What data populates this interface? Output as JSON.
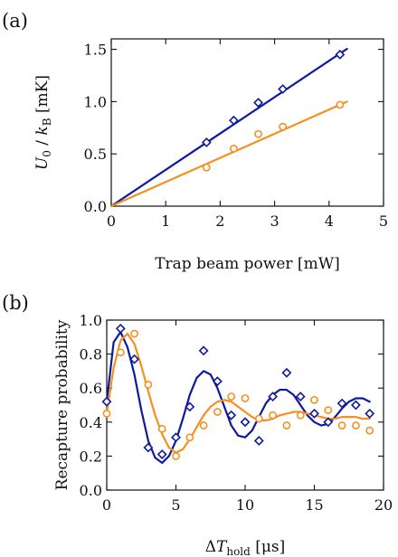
{
  "colors": {
    "series_a": "#0d1a9c",
    "series_b": "#f5901e",
    "axis": "#111111"
  },
  "chart_data": [
    {
      "type": "scatter",
      "panel_label": "(a)",
      "xlabel": "Trap beam power [mW]",
      "ylabel": "U_0 / k_B [mK]",
      "ylabel_parts": {
        "sym": "U",
        "sub": "0",
        "mid": " / ",
        "sym2": "k",
        "sub2": "B",
        "tail": " [mK]"
      },
      "xlim": [
        0,
        5
      ],
      "ylim": [
        0,
        1.6
      ],
      "xticks": [
        0,
        1,
        2,
        3,
        4,
        5
      ],
      "xtick_labels": [
        "0",
        "1",
        "2",
        "3",
        "4",
        "5"
      ],
      "yticks": [
        0,
        0.5,
        1.0,
        1.5
      ],
      "ytick_labels": [
        "0.0",
        "0.5",
        "1.0",
        "1.5"
      ],
      "grid": false,
      "series": [
        {
          "marker": "diamond",
          "x": [
            1.75,
            2.25,
            2.7,
            3.15,
            4.2
          ],
          "y": [
            0.61,
            0.82,
            0.99,
            1.12,
            1.45
          ],
          "fit": {
            "x": [
              0,
              4.33
            ],
            "y": [
              0,
              1.505
            ]
          }
        },
        {
          "marker": "circle",
          "x": [
            1.75,
            2.25,
            2.7,
            3.15,
            4.2
          ],
          "y": [
            0.37,
            0.55,
            0.69,
            0.76,
            0.97
          ],
          "fit": {
            "x": [
              0,
              4.33
            ],
            "y": [
              0,
              1.0
            ]
          }
        }
      ]
    },
    {
      "type": "scatter",
      "panel_label": "(b)",
      "xlabel": "ΔT_hold [μs]",
      "xlabel_parts": {
        "pre": "Δ",
        "sym": "T",
        "sub": "hold",
        "tail": " [μs]"
      },
      "ylabel": "Recapture probability",
      "xlim": [
        0,
        20
      ],
      "ylim": [
        0,
        1.0
      ],
      "xticks": [
        0,
        5,
        10,
        15,
        20
      ],
      "xtick_labels": [
        "0",
        "5",
        "10",
        "15",
        "20"
      ],
      "yticks": [
        0,
        0.2,
        0.4,
        0.6,
        0.8,
        1.0
      ],
      "ytick_labels": [
        "0.0",
        "0.2",
        "0.4",
        "0.6",
        "0.8",
        "1.0"
      ],
      "grid": false,
      "series": [
        {
          "marker": "diamond",
          "x": [
            0,
            1,
            2,
            3,
            4,
            5,
            6,
            7,
            8,
            9,
            10,
            11,
            12,
            13,
            14,
            15,
            16,
            17,
            18,
            19
          ],
          "y": [
            0.52,
            0.95,
            0.77,
            0.25,
            0.21,
            0.31,
            0.49,
            0.82,
            0.64,
            0.44,
            0.4,
            0.29,
            0.55,
            0.69,
            0.55,
            0.45,
            0.4,
            0.51,
            0.5,
            0.45
          ],
          "fit": {
            "x": [
              0,
              0.5,
              1,
              1.5,
              2,
              2.5,
              3,
              3.5,
              4,
              4.5,
              5,
              5.5,
              6,
              6.5,
              7,
              7.5,
              8,
              8.5,
              9,
              9.5,
              10,
              10.5,
              11,
              11.5,
              12,
              12.5,
              13,
              13.5,
              14,
              14.5,
              15,
              15.5,
              16,
              16.5,
              17,
              17.5,
              18,
              18.5,
              19
            ],
            "y": [
              0.52,
              0.87,
              0.93,
              0.84,
              0.68,
              0.47,
              0.29,
              0.19,
              0.16,
              0.2,
              0.29,
              0.42,
              0.56,
              0.66,
              0.7,
              0.68,
              0.6,
              0.49,
              0.38,
              0.32,
              0.31,
              0.35,
              0.43,
              0.51,
              0.56,
              0.59,
              0.59,
              0.56,
              0.5,
              0.44,
              0.4,
              0.38,
              0.39,
              0.43,
              0.48,
              0.52,
              0.54,
              0.54,
              0.52
            ]
          }
        },
        {
          "marker": "circle",
          "x": [
            0,
            1,
            2,
            3,
            4,
            5,
            6,
            7,
            8,
            9,
            10,
            11,
            12,
            13,
            14,
            15,
            16,
            17,
            18,
            19
          ],
          "y": [
            0.45,
            0.81,
            0.92,
            0.62,
            0.36,
            0.2,
            0.31,
            0.38,
            0.46,
            0.55,
            0.54,
            0.42,
            0.44,
            0.38,
            0.44,
            0.53,
            0.47,
            0.38,
            0.38,
            0.35
          ],
          "fit": {
            "x": [
              0,
              0.5,
              1,
              1.5,
              2,
              2.5,
              3,
              3.5,
              4,
              4.5,
              5,
              5.5,
              6,
              6.5,
              7,
              7.5,
              8,
              8.5,
              9,
              9.5,
              10,
              10.5,
              11,
              11.5,
              12,
              12.5,
              13,
              13.5,
              14,
              14.5,
              15,
              15.5,
              16,
              16.5,
              17,
              17.5,
              18,
              18.5,
              19
            ],
            "y": [
              0.45,
              0.72,
              0.88,
              0.92,
              0.86,
              0.73,
              0.58,
              0.44,
              0.33,
              0.25,
              0.22,
              0.24,
              0.3,
              0.37,
              0.44,
              0.49,
              0.52,
              0.53,
              0.52,
              0.49,
              0.46,
              0.43,
              0.41,
              0.41,
              0.42,
              0.44,
              0.45,
              0.46,
              0.46,
              0.45,
              0.44,
              0.43,
              0.42,
              0.42,
              0.43,
              0.43,
              0.43,
              0.42,
              0.42
            ]
          }
        }
      ]
    }
  ]
}
